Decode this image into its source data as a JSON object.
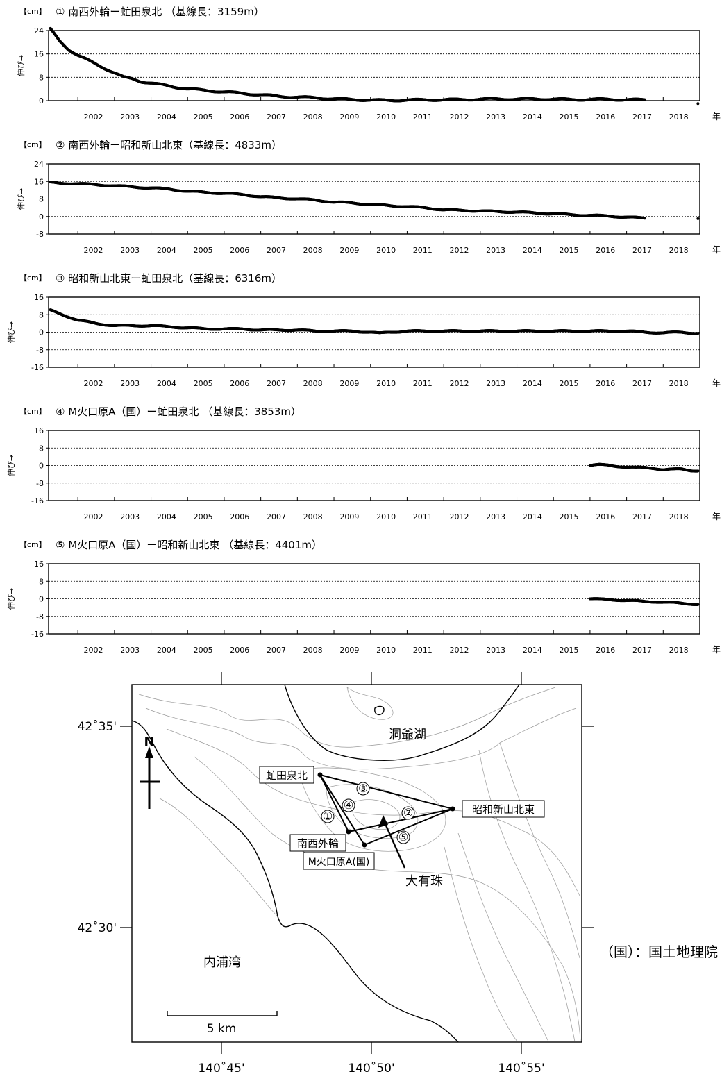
{
  "chart_data": [
    {
      "type": "scatter",
      "title": "① 南西外輪ー虻田泉北 （基線長：3159m）",
      "unit": "【cm】",
      "ylabel": "伸び→",
      "xlabel": "年",
      "ylim": [
        0,
        24
      ],
      "yticks": [
        0,
        8,
        16,
        24
      ],
      "xlim": [
        2001.2,
        2019.0
      ],
      "xticks": [
        "2002",
        "2003",
        "2004",
        "2005",
        "2006",
        "2007",
        "2008",
        "2009",
        "2010",
        "2011",
        "2012",
        "2013",
        "2014",
        "2015",
        "2016",
        "2017",
        "2018"
      ],
      "x": [
        2001.25,
        2001.5,
        2001.75,
        2002.0,
        2002.25,
        2002.5,
        2002.75,
        2003.0,
        2003.25,
        2003.5,
        2003.75,
        2004.0,
        2004.5,
        2005.0,
        2005.5,
        2006.0,
        2006.5,
        2007.0,
        2007.5,
        2008.0,
        2008.5,
        2009.0,
        2009.5,
        2010.0,
        2010.5,
        2011.0,
        2011.5,
        2012.0,
        2012.5,
        2013.0,
        2013.5,
        2014.0,
        2014.5,
        2015.0,
        2015.5,
        2016.0,
        2016.5,
        2017.0,
        2017.5,
        2018.95
      ],
      "values": [
        24.5,
        20.5,
        17.5,
        15.5,
        14,
        12.5,
        11,
        9.5,
        8,
        7.5,
        6.5,
        6,
        5,
        4,
        3.5,
        3,
        2.5,
        2,
        1.5,
        1.2,
        1,
        0.6,
        0.4,
        0.2,
        0.1,
        0.2,
        0.3,
        0.3,
        0.4,
        0.5,
        0.6,
        0.5,
        0.6,
        0.5,
        0.4,
        0.4,
        0.5,
        0.3,
        0.3,
        -1
      ]
    },
    {
      "type": "scatter",
      "title": "② 南西外輪ー昭和新山北東（基線長：4833m）",
      "unit": "【cm】",
      "ylabel": "伸び→",
      "xlabel": "年",
      "ylim": [
        -8,
        24
      ],
      "yticks": [
        -8,
        0,
        8,
        16,
        24
      ],
      "xlim": [
        2001.2,
        2019.0
      ],
      "xticks": [
        "2002",
        "2003",
        "2004",
        "2005",
        "2006",
        "2007",
        "2008",
        "2009",
        "2010",
        "2011",
        "2012",
        "2013",
        "2014",
        "2015",
        "2016",
        "2017",
        "2018"
      ],
      "x": [
        2001.25,
        2001.5,
        2002.0,
        2002.5,
        2003.0,
        2003.5,
        2004.0,
        2004.5,
        2005.0,
        2005.5,
        2006.0,
        2006.5,
        2007.0,
        2007.5,
        2008.0,
        2008.5,
        2009.0,
        2009.5,
        2010.0,
        2010.5,
        2011.0,
        2011.5,
        2012.0,
        2012.5,
        2013.0,
        2013.5,
        2014.0,
        2014.5,
        2015.0,
        2015.5,
        2016.0,
        2016.5,
        2017.0,
        2017.5,
        2018.95
      ],
      "values": [
        15.5,
        15.2,
        15,
        14.5,
        14,
        13.5,
        13,
        12.5,
        11.5,
        11,
        10.5,
        10,
        9,
        8.5,
        8,
        7.5,
        6.5,
        6.2,
        5.5,
        5,
        4.5,
        4,
        3,
        2.8,
        2.5,
        2.2,
        2,
        1.6,
        1.2,
        0.8,
        0.5,
        0.2,
        -0.3,
        -0.8,
        -1
      ]
    },
    {
      "type": "scatter",
      "title": "③ 昭和新山北東ー虻田泉北（基線長：6316m）",
      "unit": "【cm】",
      "ylabel": "伸び→",
      "xlabel": "年",
      "ylim": [
        -16,
        16
      ],
      "yticks": [
        -16,
        -8,
        0,
        8,
        16
      ],
      "xlim": [
        2001.2,
        2019.0
      ],
      "xticks": [
        "2002",
        "2003",
        "2004",
        "2005",
        "2006",
        "2007",
        "2008",
        "2009",
        "2010",
        "2011",
        "2012",
        "2013",
        "2014",
        "2015",
        "2016",
        "2017",
        "2018"
      ],
      "x": [
        2001.25,
        2001.5,
        2001.75,
        2002.0,
        2002.5,
        2003.0,
        2003.5,
        2004.0,
        2004.5,
        2005.0,
        2005.5,
        2006.0,
        2006.5,
        2007.0,
        2007.5,
        2008.0,
        2008.5,
        2009.0,
        2009.5,
        2010.0,
        2010.25,
        2010.5,
        2011.0,
        2011.5,
        2012.0,
        2012.5,
        2013.0,
        2013.5,
        2014.0,
        2014.5,
        2015.0,
        2015.5,
        2016.0,
        2016.5,
        2017.0,
        2017.5,
        2018.0,
        2018.5,
        2018.95
      ],
      "values": [
        10,
        8.5,
        7,
        5.5,
        4,
        3,
        3,
        3,
        2.5,
        2,
        1.5,
        1.5,
        1.5,
        1,
        1,
        1,
        0.5,
        0.5,
        0.5,
        0,
        -0.5,
        0,
        0.5,
        0.5,
        0.5,
        0.5,
        0.5,
        0.5,
        0.5,
        0.5,
        0.5,
        0.5,
        0.5,
        0.5,
        0.5,
        0,
        -0.3,
        0,
        -0.5
      ]
    },
    {
      "type": "scatter",
      "title": "④ M火口原A（国）ー虻田泉北 （基線長：3853m）",
      "unit": "【cm】",
      "ylabel": "伸び→",
      "xlabel": "年",
      "ylim": [
        -16,
        16
      ],
      "yticks": [
        -16,
        -8,
        0,
        8,
        16
      ],
      "xlim": [
        2001.2,
        2019.0
      ],
      "xticks": [
        "2002",
        "2003",
        "2004",
        "2005",
        "2006",
        "2007",
        "2008",
        "2009",
        "2010",
        "2011",
        "2012",
        "2013",
        "2014",
        "2015",
        "2016",
        "2017",
        "2018"
      ],
      "x": [
        2016.0,
        2016.25,
        2016.5,
        2016.75,
        2017.0,
        2017.25,
        2017.5,
        2017.75,
        2018.0,
        2018.25,
        2018.5,
        2018.75,
        2018.95
      ],
      "values": [
        0,
        0.3,
        0.2,
        -0.3,
        -0.8,
        -1,
        -0.8,
        -1.2,
        -2,
        -1.8,
        -1.5,
        -2.2,
        -2.5
      ]
    },
    {
      "type": "scatter",
      "title": "⑤ M火口原A（国）ー昭和新山北東 （基線長：4401m）",
      "unit": "【cm】",
      "ylabel": "伸び→",
      "xlabel": "年",
      "ylim": [
        -16,
        16
      ],
      "yticks": [
        -16,
        -8,
        0,
        8,
        16
      ],
      "xlim": [
        2001.2,
        2019.0
      ],
      "xticks": [
        "2002",
        "2003",
        "2004",
        "2005",
        "2006",
        "2007",
        "2008",
        "2009",
        "2010",
        "2011",
        "2012",
        "2013",
        "2014",
        "2015",
        "2016",
        "2017",
        "2018"
      ],
      "x": [
        2016.0,
        2016.25,
        2016.5,
        2016.75,
        2017.0,
        2017.25,
        2017.5,
        2017.75,
        2018.0,
        2018.25,
        2018.5,
        2018.75,
        2018.95
      ],
      "values": [
        0,
        -0.2,
        -0.3,
        -0.5,
        -0.8,
        -1,
        -1.2,
        -1.3,
        -1.6,
        -1.8,
        -2,
        -2.3,
        -2.6
      ]
    }
  ],
  "map": {
    "lat_labels": [
      "42˚35'",
      "42˚30'"
    ],
    "lon_labels": [
      "140˚45'",
      "140˚50'",
      "140˚55'"
    ],
    "lake_label": "洞爺湖",
    "bay_label": "内浦湾",
    "stations": {
      "abuta": "虻田泉北",
      "showa": "昭和新山北東",
      "nanseigairin": "南西外輪",
      "mkakou": "M火口原A(国)"
    },
    "mountain_label": "大有珠",
    "baseline_numbers": [
      "①",
      "②",
      "③",
      "④",
      "⑤"
    ],
    "north_label": "N",
    "scale_label": "5 km",
    "credit": "（国）：国土地理院"
  }
}
